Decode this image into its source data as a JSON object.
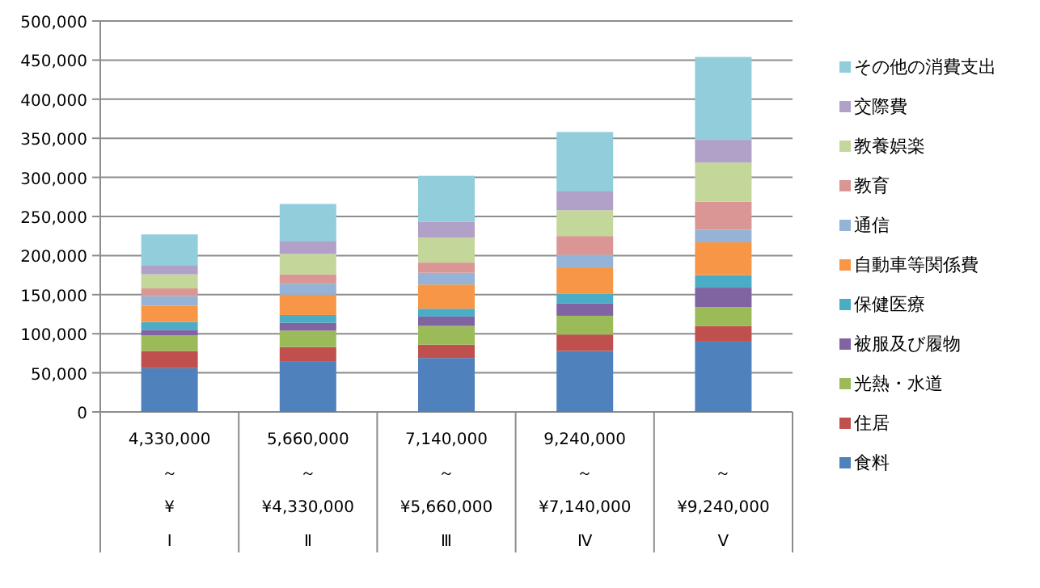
{
  "chart_data": {
    "type": "bar",
    "stacked": true,
    "categories": [
      "4,330,000\n～\n¥\nⅠ",
      "5,660,000\n～\n¥4,330,000\nⅡ",
      "7,140,000\n～\n¥5,660,000\nⅢ",
      "9,240,000\n～\n¥7,140,000\nⅣ",
      "～\n¥9,240,000\nⅤ"
    ],
    "series": [
      {
        "name": "食料",
        "color": "#4f81bd",
        "values": [
          56000,
          65000,
          69000,
          78000,
          90000
        ]
      },
      {
        "name": "住居",
        "color": "#c0504d",
        "values": [
          22000,
          18000,
          17000,
          21000,
          20000
        ]
      },
      {
        "name": "光熱・水道",
        "color": "#9bbb59",
        "values": [
          20000,
          21000,
          24000,
          24000,
          24000
        ]
      },
      {
        "name": "被服及び履物",
        "color": "#8064a2",
        "values": [
          7000,
          10000,
          12000,
          16000,
          25000
        ]
      },
      {
        "name": "保健医療",
        "color": "#4bacc6",
        "values": [
          10000,
          10000,
          10000,
          12000,
          16000
        ]
      },
      {
        "name": "自動車等関係費",
        "color": "#f79646",
        "values": [
          21000,
          26000,
          31000,
          34000,
          42000
        ]
      },
      {
        "name": "通信",
        "color": "#95b3d7",
        "values": [
          12000,
          14000,
          15000,
          16000,
          16000
        ]
      },
      {
        "name": "教育",
        "color": "#da9694",
        "values": [
          10000,
          12000,
          13000,
          24000,
          36000
        ]
      },
      {
        "name": "教養娯楽",
        "color": "#c4d79b",
        "values": [
          18000,
          26000,
          32000,
          33000,
          50000
        ]
      },
      {
        "name": "交際費",
        "color": "#b1a0c7",
        "values": [
          11000,
          16000,
          20000,
          24000,
          29000
        ]
      },
      {
        "name": "その他の消費支出",
        "color": "#92cddc",
        "values": [
          40000,
          48000,
          59000,
          76000,
          106000
        ]
      }
    ],
    "ylim": [
      0,
      500000
    ],
    "yticks": [
      {
        "value": 0,
        "label": "0"
      },
      {
        "value": 50000,
        "label": "50,000"
      },
      {
        "value": 100000,
        "label": "100,000"
      },
      {
        "value": 150000,
        "label": "150,000"
      },
      {
        "value": 200000,
        "label": "200,000"
      },
      {
        "value": 250000,
        "label": "250,000"
      },
      {
        "value": 300000,
        "label": "300,000"
      },
      {
        "value": 350000,
        "label": "350,000"
      },
      {
        "value": 400000,
        "label": "400,000"
      },
      {
        "value": 450000,
        "label": "450,000"
      },
      {
        "value": 500000,
        "label": "500,000"
      }
    ],
    "grid": "y",
    "legend": "right"
  }
}
